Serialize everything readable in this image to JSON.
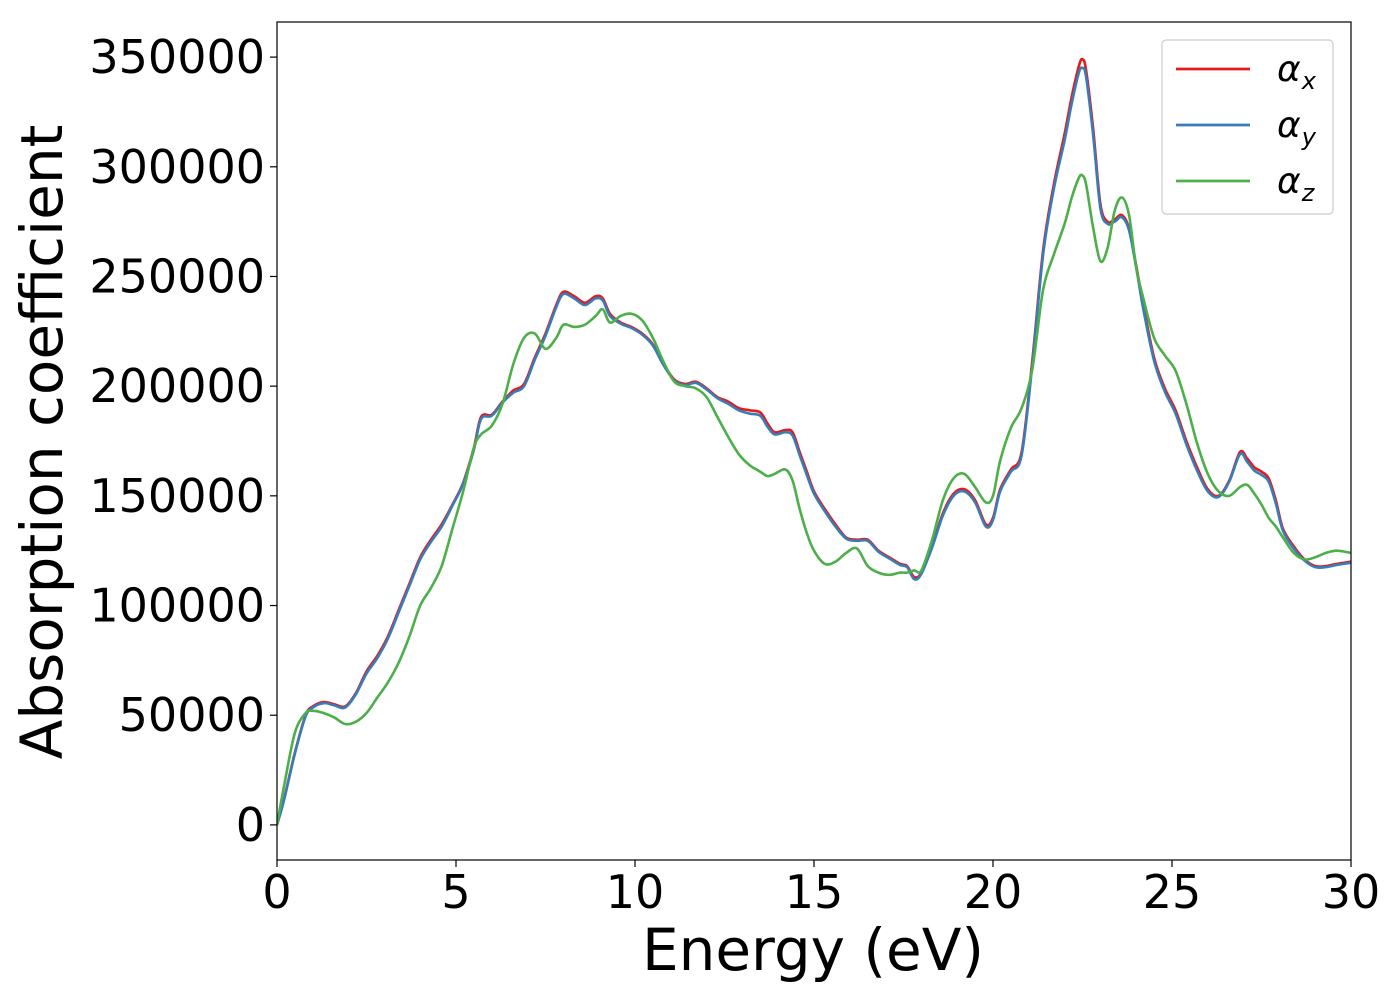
{
  "chart_data": {
    "type": "line",
    "title": "",
    "xlabel": "Energy (eV)",
    "ylabel": "Absorption coefficient",
    "xlim": [
      0,
      30
    ],
    "ylim": [
      -16000,
      366000
    ],
    "xticks": [
      0,
      5,
      10,
      15,
      20,
      25,
      30
    ],
    "xtick_labels": [
      "0",
      "5",
      "10",
      "15",
      "20",
      "25",
      "30"
    ],
    "yticks": [
      0,
      50000,
      100000,
      150000,
      200000,
      250000,
      300000,
      350000
    ],
    "ytick_labels": [
      "0",
      "50000",
      "100000",
      "150000",
      "200000",
      "250000",
      "300000",
      "350000"
    ],
    "grid": false,
    "legend_position": "top-right",
    "series": [
      {
        "name": "α_x",
        "legend_base": "α",
        "legend_sub": "x",
        "color": "#e41a1c",
        "x": [
          0,
          0.2,
          0.5,
          0.8,
          1.0,
          1.3,
          1.6,
          1.9,
          2.2,
          2.5,
          2.8,
          3.1,
          3.4,
          3.7,
          4.0,
          4.3,
          4.6,
          4.9,
          5.2,
          5.5,
          5.7,
          6.0,
          6.3,
          6.6,
          6.9,
          7.2,
          7.5,
          7.8,
          8.0,
          8.3,
          8.6,
          8.9,
          9.1,
          9.3,
          9.6,
          9.9,
          10.2,
          10.5,
          10.8,
          11.1,
          11.4,
          11.7,
          12.0,
          12.3,
          12.6,
          12.9,
          13.2,
          13.5,
          13.7,
          13.9,
          14.2,
          14.4,
          14.6,
          14.8,
          15.0,
          15.3,
          15.6,
          15.9,
          16.2,
          16.5,
          16.8,
          17.1,
          17.4,
          17.6,
          17.8,
          18.0,
          18.3,
          18.6,
          18.9,
          19.2,
          19.5,
          19.8,
          20.0,
          20.2,
          20.5,
          20.8,
          21.1,
          21.4,
          21.7,
          22.0,
          22.2,
          22.4,
          22.5,
          22.6,
          22.8,
          23.0,
          23.2,
          23.4,
          23.6,
          23.8,
          24.0,
          24.2,
          24.5,
          24.8,
          25.1,
          25.4,
          25.7,
          26.0,
          26.3,
          26.6,
          26.9,
          27.1,
          27.3,
          27.5,
          27.7,
          27.9,
          28.1,
          28.4,
          28.7,
          29.0,
          29.3,
          29.6,
          30.0
        ],
        "y": [
          0,
          12000,
          33000,
          50000,
          54000,
          56000,
          55000,
          54000,
          60000,
          70000,
          77000,
          86000,
          98000,
          110000,
          122000,
          130000,
          137000,
          146000,
          156000,
          172000,
          186000,
          187000,
          193000,
          198000,
          201000,
          213000,
          224000,
          237000,
          243000,
          241000,
          238000,
          241000,
          240000,
          233000,
          229000,
          227000,
          224000,
          219000,
          210000,
          203000,
          201000,
          202000,
          199000,
          195000,
          193000,
          190000,
          189000,
          188000,
          183000,
          179000,
          180000,
          179000,
          170000,
          161000,
          152000,
          144000,
          137000,
          131000,
          130000,
          130000,
          125000,
          122000,
          119000,
          118000,
          113000,
          115000,
          127000,
          142000,
          151000,
          153000,
          148000,
          137000,
          140000,
          153000,
          162000,
          170000,
          212000,
          262000,
          292000,
          315000,
          332000,
          346000,
          349000,
          344000,
          317000,
          283000,
          275000,
          276000,
          278000,
          272000,
          255000,
          237000,
          213000,
          199000,
          189000,
          175000,
          163000,
          153000,
          150000,
          157000,
          170000,
          167000,
          163000,
          161000,
          158000,
          148000,
          135000,
          127000,
          121000,
          118000,
          118000,
          119000,
          120000
        ]
      },
      {
        "name": "α_y",
        "legend_base": "α",
        "legend_sub": "y",
        "color": "#377eb8",
        "x": [
          0,
          0.2,
          0.5,
          0.8,
          1.0,
          1.3,
          1.6,
          1.9,
          2.2,
          2.5,
          2.8,
          3.1,
          3.4,
          3.7,
          4.0,
          4.3,
          4.6,
          4.9,
          5.2,
          5.5,
          5.7,
          6.0,
          6.3,
          6.6,
          6.9,
          7.2,
          7.5,
          7.8,
          8.0,
          8.3,
          8.6,
          8.9,
          9.1,
          9.3,
          9.6,
          9.9,
          10.2,
          10.5,
          10.8,
          11.1,
          11.4,
          11.7,
          12.0,
          12.3,
          12.6,
          12.9,
          13.2,
          13.5,
          13.7,
          13.9,
          14.2,
          14.4,
          14.6,
          14.8,
          15.0,
          15.3,
          15.6,
          15.9,
          16.2,
          16.5,
          16.8,
          17.1,
          17.4,
          17.6,
          17.8,
          18.0,
          18.3,
          18.6,
          18.9,
          19.2,
          19.5,
          19.8,
          20.0,
          20.2,
          20.5,
          20.8,
          21.1,
          21.4,
          21.7,
          22.0,
          22.2,
          22.4,
          22.5,
          22.6,
          22.8,
          23.0,
          23.2,
          23.4,
          23.6,
          23.8,
          24.0,
          24.2,
          24.5,
          24.8,
          25.1,
          25.4,
          25.7,
          26.0,
          26.3,
          26.6,
          26.9,
          27.1,
          27.3,
          27.5,
          27.7,
          27.9,
          28.1,
          28.4,
          28.7,
          29.0,
          29.3,
          29.6,
          30.0
        ],
        "y": [
          0,
          11500,
          32500,
          49500,
          53500,
          55500,
          54500,
          53500,
          59500,
          69000,
          76000,
          85000,
          97000,
          109000,
          121000,
          129000,
          136000,
          145500,
          155500,
          171000,
          185000,
          186500,
          192500,
          197000,
          200000,
          212000,
          223000,
          236000,
          242000,
          240000,
          237000,
          240000,
          239000,
          232000,
          228500,
          226500,
          223500,
          218500,
          209500,
          202500,
          200500,
          201500,
          198500,
          194500,
          192000,
          189000,
          187500,
          186500,
          181500,
          178000,
          179000,
          177500,
          168500,
          159500,
          151000,
          143000,
          136000,
          130500,
          129500,
          129500,
          124500,
          121500,
          118500,
          117500,
          112000,
          114500,
          126500,
          141000,
          150000,
          152000,
          147000,
          136000,
          139000,
          152000,
          161000,
          168500,
          210000,
          260000,
          290000,
          312000,
          329000,
          343000,
          345000,
          341000,
          314000,
          281000,
          274000,
          275000,
          277000,
          271000,
          254000,
          235000,
          211500,
          197500,
          187500,
          173500,
          161500,
          152000,
          149500,
          156500,
          169000,
          165500,
          161500,
          159500,
          156500,
          146500,
          134000,
          126000,
          120500,
          117500,
          117500,
          118500,
          119500
        ]
      },
      {
        "name": "α_z",
        "legend_base": "α",
        "legend_sub": "z",
        "color": "#4daf4a",
        "x": [
          0,
          0.2,
          0.5,
          0.8,
          1.0,
          1.3,
          1.6,
          1.9,
          2.2,
          2.5,
          2.8,
          3.1,
          3.4,
          3.7,
          4.0,
          4.3,
          4.6,
          4.9,
          5.2,
          5.5,
          5.7,
          6.0,
          6.3,
          6.6,
          6.9,
          7.2,
          7.5,
          7.8,
          8.0,
          8.3,
          8.6,
          8.9,
          9.1,
          9.3,
          9.6,
          9.9,
          10.2,
          10.5,
          10.8,
          11.1,
          11.4,
          11.7,
          12.0,
          12.3,
          12.6,
          12.9,
          13.2,
          13.5,
          13.7,
          13.9,
          14.2,
          14.4,
          14.6,
          14.8,
          15.0,
          15.3,
          15.6,
          15.9,
          16.2,
          16.5,
          16.8,
          17.1,
          17.4,
          17.6,
          17.8,
          18.0,
          18.3,
          18.6,
          18.9,
          19.2,
          19.5,
          19.8,
          20.0,
          20.2,
          20.5,
          20.8,
          21.1,
          21.4,
          21.7,
          22.0,
          22.2,
          22.4,
          22.5,
          22.6,
          22.8,
          23.0,
          23.2,
          23.4,
          23.6,
          23.8,
          24.0,
          24.2,
          24.5,
          24.8,
          25.1,
          25.4,
          25.7,
          26.0,
          26.3,
          26.6,
          26.9,
          27.1,
          27.3,
          27.5,
          27.7,
          27.9,
          28.1,
          28.4,
          28.7,
          29.0,
          29.3,
          29.6,
          30.0
        ],
        "y": [
          0,
          18000,
          42000,
          51000,
          52000,
          51000,
          49000,
          46000,
          47000,
          51000,
          58000,
          65000,
          74000,
          86000,
          100000,
          108000,
          118000,
          135000,
          152000,
          172000,
          178000,
          182000,
          192000,
          210000,
          222000,
          224000,
          217000,
          222000,
          228000,
          227000,
          228000,
          232000,
          235000,
          229000,
          232000,
          233000,
          230000,
          222000,
          211000,
          202000,
          200000,
          199000,
          195000,
          186000,
          177000,
          169000,
          164000,
          161000,
          159000,
          160000,
          162000,
          157000,
          144000,
          133000,
          125000,
          119000,
          120000,
          124000,
          126000,
          118000,
          115000,
          114000,
          115000,
          115000,
          116000,
          116000,
          130000,
          148000,
          158000,
          160000,
          154000,
          147000,
          150000,
          166000,
          181000,
          190000,
          208000,
          244000,
          260000,
          274000,
          286000,
          295000,
          296000,
          292000,
          272000,
          257000,
          263000,
          280000,
          286000,
          278000,
          254000,
          240000,
          222000,
          214000,
          207000,
          192000,
          174000,
          160000,
          152000,
          150000,
          154000,
          155000,
          151000,
          146000,
          140000,
          136000,
          131000,
          124000,
          121000,
          122000,
          124000,
          125000,
          124000
        ]
      }
    ]
  }
}
